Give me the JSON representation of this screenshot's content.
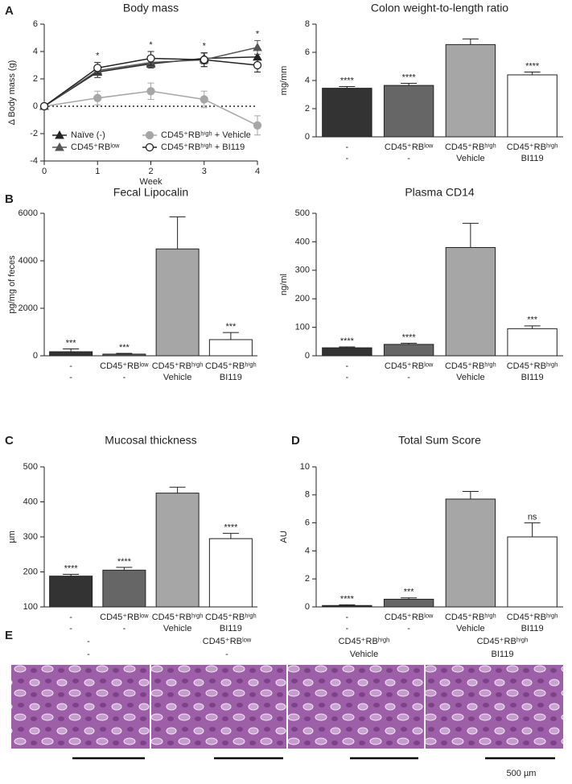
{
  "panels": [
    "A",
    "B",
    "C",
    "D",
    "E"
  ],
  "chart_data": [
    {
      "type": "line",
      "title": "Body mass",
      "x_label": "Week",
      "y_label": "Δ Body mass (g)",
      "x": [
        0,
        1,
        2,
        3,
        4
      ],
      "xlim": [
        0,
        4
      ],
      "xticks": [
        0,
        1,
        2,
        3,
        4
      ],
      "ylim": [
        -4,
        6
      ],
      "yticks": [
        -4,
        -2,
        0,
        2,
        4,
        6
      ],
      "reference_line": 0,
      "significance": [
        null,
        "*",
        "*",
        "*",
        "*"
      ],
      "legend": "lower left",
      "grid": false,
      "series": [
        {
          "name": "Naïve (-)",
          "color": "#222222",
          "marker": "triangle",
          "fill": "#222222",
          "values": [
            0,
            2.5,
            3.1,
            3.5,
            3.6
          ],
          "errors": [
            0,
            0.4,
            0.3,
            0.4,
            0.5
          ]
        },
        {
          "name": "CD45⁺RBˡᵒʷ",
          "color": "#555555",
          "marker": "triangle",
          "fill": "#555555",
          "values": [
            0,
            2.6,
            3.2,
            3.4,
            4.3
          ],
          "errors": [
            0,
            0.3,
            0.3,
            0.5,
            0.5
          ]
        },
        {
          "name": "CD45⁺RBʰⁱᵍʰ + Vehicle",
          "color": "#a6a6a6",
          "marker": "circle",
          "fill": "#a6a6a6",
          "values": [
            0,
            0.6,
            1.1,
            0.5,
            -1.4
          ],
          "errors": [
            0,
            0.5,
            0.6,
            0.6,
            0.7
          ]
        },
        {
          "name": "CD45⁺RBʰⁱᵍʰ + BI119",
          "color": "#222222",
          "marker": "circle",
          "fill": "#ffffff",
          "values": [
            0,
            2.8,
            3.5,
            3.4,
            3.0
          ],
          "errors": [
            0,
            0.4,
            0.5,
            0.5,
            0.5
          ]
        }
      ]
    },
    {
      "type": "bar",
      "title": "Colon weight-to-length ratio",
      "y_label": "mg/mm",
      "categories": [
        "-",
        "CD45⁺RBˡᵒʷ",
        "CD45⁺RBʰⁱᵍʰ",
        "CD45⁺RBʰⁱᵍʰ"
      ],
      "sublabels": [
        "-",
        "-",
        "Vehicle",
        "BI119"
      ],
      "values": [
        3.45,
        3.65,
        6.55,
        4.4
      ],
      "errors": [
        0.12,
        0.15,
        0.4,
        0.2
      ],
      "significance": [
        "****",
        "****",
        null,
        "****"
      ],
      "colors": [
        "#333333",
        "#666666",
        "#a6a6a6",
        "#ffffff"
      ],
      "ylim": [
        0,
        8
      ],
      "yticks": [
        0,
        2,
        4,
        6,
        8
      ],
      "grid": false
    },
    {
      "type": "bar",
      "title": "Fecal Lipocalin",
      "y_label": "pg/mg of feces",
      "categories": [
        "-",
        "CD45⁺RBˡᵒʷ",
        "CD45⁺RBʰⁱᵍʰ",
        "CD45⁺RBʰⁱᵍʰ"
      ],
      "sublabels": [
        "-",
        "-",
        "Vehicle",
        "BI119"
      ],
      "values": [
        170,
        70,
        4500,
        680
      ],
      "errors": [
        120,
        30,
        1350,
        300
      ],
      "significance": [
        "***",
        "***",
        null,
        "***"
      ],
      "colors": [
        "#333333",
        "#666666",
        "#a6a6a6",
        "#ffffff"
      ],
      "ylim": [
        0,
        6000
      ],
      "yticks": [
        0,
        2000,
        4000,
        6000
      ],
      "grid": false
    },
    {
      "type": "bar",
      "title": "Plasma CD14",
      "y_label": "ng/ml",
      "categories": [
        "-",
        "CD45⁺RBˡᵒʷ",
        "CD45⁺RBʰⁱᵍʰ",
        "CD45⁺RBʰⁱᵍʰ"
      ],
      "sublabels": [
        "-",
        "-",
        "Vehicle",
        "BI119"
      ],
      "values": [
        28,
        40,
        380,
        95
      ],
      "errors": [
        3,
        4,
        85,
        10
      ],
      "significance": [
        "****",
        "****",
        null,
        "***"
      ],
      "colors": [
        "#333333",
        "#666666",
        "#a6a6a6",
        "#ffffff"
      ],
      "ylim": [
        0,
        500
      ],
      "yticks": [
        0,
        100,
        200,
        300,
        400,
        500
      ],
      "grid": false
    },
    {
      "type": "bar",
      "title": "Mucosal thickness",
      "y_label": "µm",
      "categories": [
        "-",
        "CD45⁺RBˡᵒʷ",
        "CD45⁺RBʰⁱᵍʰ",
        "CD45⁺RBʰⁱᵍʰ"
      ],
      "sublabels": [
        "-",
        "-",
        "Vehicle",
        "BI119"
      ],
      "values": [
        188,
        205,
        425,
        295
      ],
      "errors": [
        5,
        8,
        17,
        15
      ],
      "significance": [
        "****",
        "****",
        null,
        "****"
      ],
      "colors": [
        "#333333",
        "#666666",
        "#a6a6a6",
        "#ffffff"
      ],
      "ylim": [
        100,
        500
      ],
      "yticks": [
        100,
        200,
        300,
        400,
        500
      ],
      "grid": false
    },
    {
      "type": "bar",
      "title": "Total Sum Score",
      "y_label": "AU",
      "categories": [
        "-",
        "CD45⁺RBˡᵒʷ",
        "CD45⁺RBʰⁱᵍʰ",
        "CD45⁺RBʰⁱᵍʰ"
      ],
      "sublabels": [
        "-",
        "-",
        "Vehicle",
        "BI119"
      ],
      "values": [
        0.1,
        0.55,
        7.7,
        5.0
      ],
      "errors": [
        0.05,
        0.1,
        0.55,
        1.0
      ],
      "significance": [
        "****",
        "***",
        null,
        "ns"
      ],
      "colors": [
        "#333333",
        "#666666",
        "#a6a6a6",
        "#ffffff"
      ],
      "ylim": [
        0,
        10
      ],
      "yticks": [
        0,
        2,
        4,
        6,
        8,
        10
      ],
      "grid": false
    }
  ],
  "histology": {
    "labels": [
      [
        "-",
        "-"
      ],
      [
        "CD45⁺RBˡᵒʷ",
        "-"
      ],
      [
        "CD45⁺RBʰⁱᵍʰ",
        "Vehicle"
      ],
      [
        "CD45⁺RBʰⁱᵍʰ",
        "BI119"
      ]
    ],
    "scale_bar": "500 µm"
  }
}
